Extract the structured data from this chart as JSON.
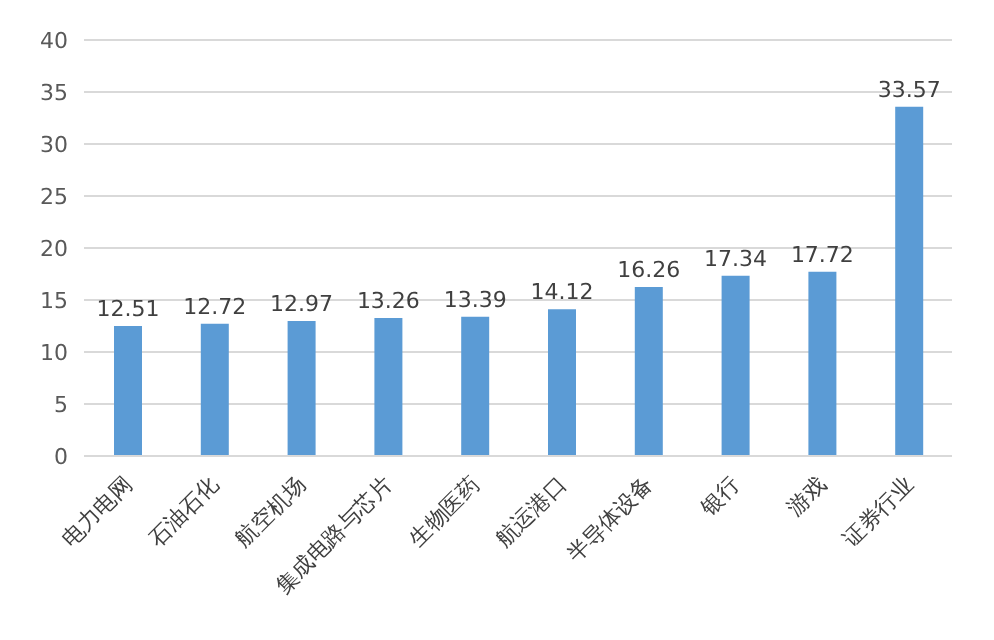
{
  "chart_data": {
    "type": "bar",
    "categories": [
      "电力电网",
      "石油石化",
      "航空机场",
      "集成电路与芯片",
      "生物医药",
      "航运港口",
      "半导体设备",
      "银行",
      "游戏",
      "证券行业"
    ],
    "values": [
      12.51,
      12.72,
      12.97,
      13.26,
      13.39,
      14.12,
      16.26,
      17.34,
      17.72,
      33.57
    ],
    "color": "#5b9bd5",
    "ylim": [
      0,
      40
    ],
    "yticks": [
      0,
      5,
      10,
      15,
      20,
      25,
      30,
      35,
      40
    ],
    "grid": "y",
    "data_labels": true
  }
}
